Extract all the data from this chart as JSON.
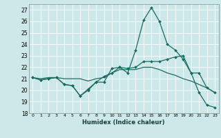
{
  "xlabel": "Humidex (Indice chaleur)",
  "ylabel": "",
  "bg_color": "#cce8e8",
  "grid_color": "#ffffff",
  "line_color": "#1a6b5e",
  "xlim": [
    -0.5,
    23.5
  ],
  "ylim": [
    18,
    27.5
  ],
  "yticks": [
    18,
    19,
    20,
    21,
    22,
    23,
    24,
    25,
    26,
    27
  ],
  "xticks": [
    0,
    1,
    2,
    3,
    4,
    5,
    6,
    7,
    8,
    9,
    10,
    11,
    12,
    13,
    14,
    15,
    16,
    17,
    18,
    19,
    20,
    21,
    22,
    23
  ],
  "series": [
    [
      21.1,
      20.9,
      21.0,
      21.1,
      20.5,
      20.4,
      19.5,
      20.1,
      20.7,
      20.7,
      21.9,
      22.0,
      21.5,
      23.5,
      26.1,
      27.2,
      26.0,
      24.0,
      23.5,
      22.7,
      21.5,
      19.8,
      18.7,
      18.5
    ],
    [
      21.1,
      20.9,
      21.0,
      21.1,
      20.5,
      20.4,
      19.5,
      20.0,
      20.7,
      21.2,
      21.5,
      22.0,
      21.9,
      22.0,
      22.5,
      22.5,
      22.5,
      22.7,
      22.9,
      23.0,
      21.5,
      21.5,
      20.2,
      19.8
    ],
    [
      21.1,
      21.0,
      21.1,
      21.1,
      21.0,
      21.0,
      21.0,
      20.8,
      21.0,
      21.1,
      21.5,
      21.8,
      21.8,
      21.8,
      22.0,
      22.0,
      21.8,
      21.5,
      21.3,
      21.0,
      20.8,
      20.5,
      20.2,
      19.8
    ]
  ]
}
